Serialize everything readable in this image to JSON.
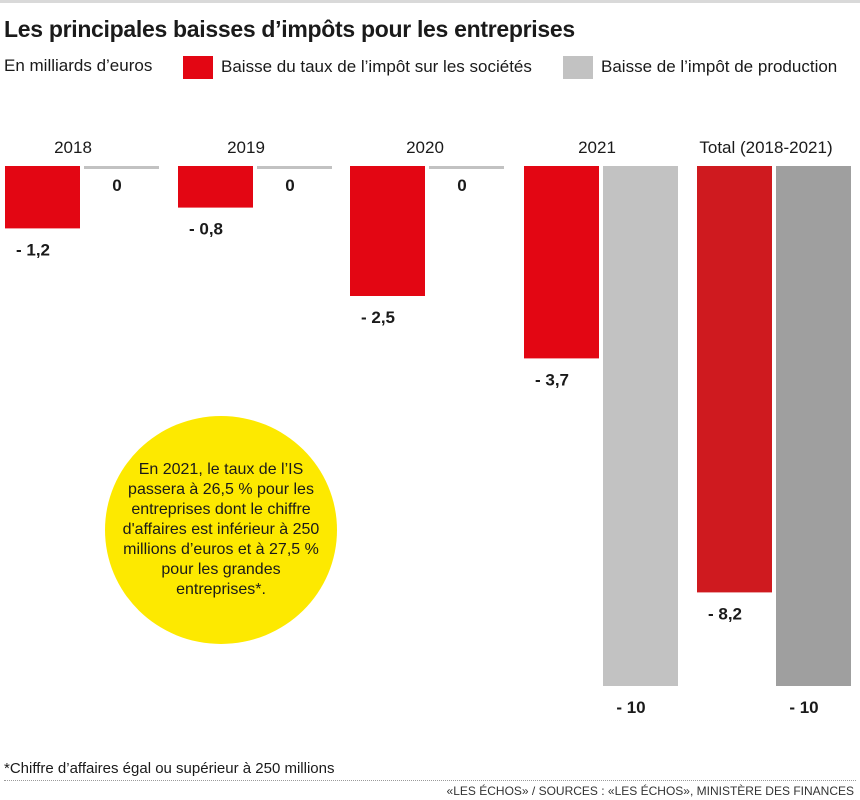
{
  "title": "Les principales baisses d’impôts pour les entreprises",
  "unit": "En milliards d’euros",
  "legend": [
    {
      "label": "Baisse du taux de l’impôt sur les sociétés",
      "color": "#e30613"
    },
    {
      "label": "Baisse de l’impôt de production",
      "color": "#c2c2c2"
    }
  ],
  "callout": "En 2021, le taux de l’IS passera à 26,5 % pour les entreprises dont le chiffre d'affaires est inférieur à 250 millions d’euros et à 27,5 % pour les grandes entreprises*.",
  "footnote": "*Chiffre d’affaires égal ou supérieur à 250 millions",
  "source": "«LES ÉCHOS» / SOURCES : «LES ÉCHOS», MINISTÈRE DES FINANCES",
  "chart_data": {
    "type": "bar",
    "categories": [
      "2018",
      "2019",
      "2020",
      "2021",
      "Total (2018-2021)"
    ],
    "series": [
      {
        "name": "Baisse du taux de l’impôt sur les sociétés",
        "values": [
          -1.2,
          -0.8,
          -2.5,
          -3.7,
          -8.2
        ],
        "labels": [
          "- 1,2",
          "- 0,8",
          "- 2,5",
          "- 3,7",
          "- 8,2"
        ],
        "color": "#e30613",
        "total_color": "#cf1a1f"
      },
      {
        "name": "Baisse de l’impôt de production",
        "values": [
          0,
          0,
          0,
          -10,
          -10
        ],
        "labels": [
          "0",
          "0",
          "0",
          "- 10",
          "- 10"
        ],
        "color": "#c2c2c2",
        "total_color": "#9f9f9f"
      }
    ],
    "ylim": [
      -10,
      0
    ],
    "grid": false,
    "legend": "top"
  }
}
